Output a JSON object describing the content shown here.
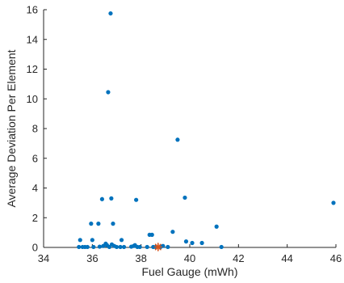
{
  "chart_data": {
    "type": "scatter",
    "xlabel": "Fuel Gauge (mWh)",
    "ylabel": "Average Deviation Per Element",
    "xlim": [
      34,
      46
    ],
    "ylim": [
      0,
      16
    ],
    "xticks": [
      34,
      36,
      38,
      40,
      42,
      44,
      46
    ],
    "yticks": [
      0,
      2,
      4,
      6,
      8,
      10,
      12,
      14,
      16
    ],
    "grid": false,
    "legend": "none",
    "series": [
      {
        "color": "#0072BD",
        "marker": "dot",
        "points": [
          [
            35.45,
            0.03
          ],
          [
            35.5,
            0.5
          ],
          [
            35.6,
            0.03
          ],
          [
            35.7,
            0.03
          ],
          [
            35.8,
            0.03
          ],
          [
            35.95,
            1.6
          ],
          [
            36.0,
            0.5
          ],
          [
            36.05,
            0.03
          ],
          [
            36.25,
            1.6
          ],
          [
            36.3,
            0.05
          ],
          [
            36.4,
            3.25
          ],
          [
            36.45,
            0.1
          ],
          [
            36.55,
            0.25
          ],
          [
            36.6,
            0.15
          ],
          [
            36.65,
            10.45
          ],
          [
            36.7,
            0.03
          ],
          [
            36.75,
            15.75
          ],
          [
            36.78,
            3.3
          ],
          [
            36.8,
            0.2
          ],
          [
            36.85,
            1.6
          ],
          [
            36.9,
            0.1
          ],
          [
            37.0,
            0.03
          ],
          [
            37.15,
            0.03
          ],
          [
            37.2,
            0.5
          ],
          [
            37.3,
            0.03
          ],
          [
            37.6,
            0.05
          ],
          [
            37.7,
            0.1
          ],
          [
            37.75,
            0.15
          ],
          [
            37.8,
            3.2
          ],
          [
            37.85,
            0.03
          ],
          [
            37.95,
            0.03
          ],
          [
            38.25,
            0.03
          ],
          [
            38.35,
            0.85
          ],
          [
            38.45,
            0.85
          ],
          [
            38.5,
            0.03
          ],
          [
            38.6,
            0.03
          ],
          [
            38.8,
            0.03
          ],
          [
            38.9,
            0.1
          ],
          [
            39.1,
            0.03
          ],
          [
            39.3,
            1.05
          ],
          [
            39.5,
            7.25
          ],
          [
            39.8,
            3.35
          ],
          [
            39.85,
            0.4
          ],
          [
            40.1,
            0.3
          ],
          [
            40.5,
            0.3
          ],
          [
            41.1,
            1.4
          ],
          [
            41.3,
            0.03
          ],
          [
            45.9,
            3.0
          ]
        ]
      },
      {
        "color": "#D95319",
        "marker": "asterisk",
        "points": [
          [
            38.7,
            0.03
          ]
        ]
      }
    ]
  }
}
